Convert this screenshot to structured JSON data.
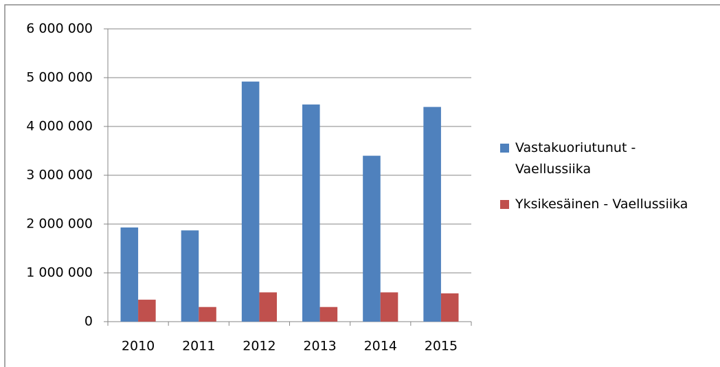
{
  "chart_data": {
    "type": "bar",
    "categories": [
      "2010",
      "2011",
      "2012",
      "2013",
      "2014",
      "2015"
    ],
    "series": [
      {
        "name": "Vastakuoriutunut - Vaellussiika",
        "color": "#4f81bd",
        "values": [
          1930000,
          1870000,
          4920000,
          4450000,
          3400000,
          4400000
        ]
      },
      {
        "name": "Yksikesäinen - Vaellussiika",
        "color": "#c0504d",
        "values": [
          450000,
          300000,
          600000,
          300000,
          600000,
          580000
        ]
      }
    ],
    "ylim": [
      0,
      6000000
    ],
    "yticks": [
      0,
      {
        "value": 1000000,
        "label": "1 000 000"
      },
      {
        "value": 2000000,
        "label": "2 000 000"
      },
      {
        "value": 3000000,
        "label": "3 000 000"
      },
      {
        "value": 4000000,
        "label": "4 000 000"
      },
      {
        "value": 5000000,
        "label": "5 000 000"
      },
      {
        "value": 6000000,
        "label": "6 000 000"
      }
    ],
    "grid": true,
    "legend": "right"
  }
}
